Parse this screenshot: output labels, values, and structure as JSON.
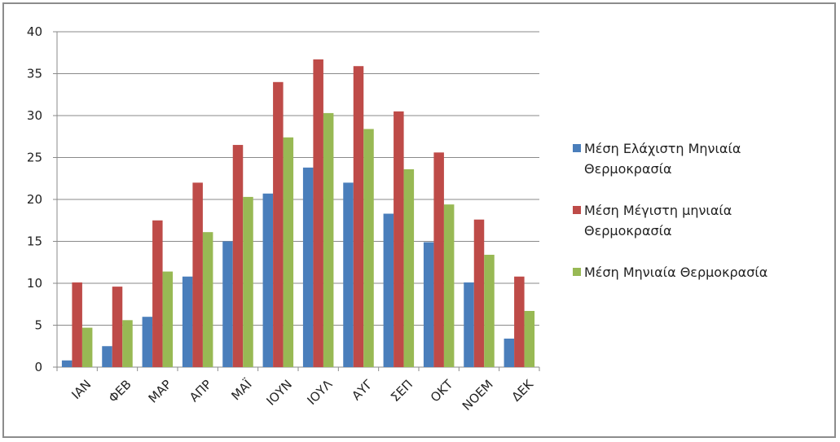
{
  "chart_data": {
    "type": "bar",
    "categories": [
      "ΙΑΝ",
      "ΦΕΒ",
      "ΜΑΡ",
      "ΑΠΡ",
      "ΜΑΪ",
      "ΙΟΥΝ",
      "ΙΟΥΛ",
      "ΑΥΓ",
      "ΣΕΠ",
      "ΟΚΤ",
      "ΝΟΕΜ",
      "ΔΕΚ"
    ],
    "series": [
      {
        "name": "Μέση Ελάχιστη Μηνιαία Θερμοκρασία",
        "legend_lines": [
          "Μέση Ελάχιστη Μηνιαία",
          "Θερμοκρασία"
        ],
        "color": "#4a7ebb",
        "values": [
          0.8,
          2.5,
          6.0,
          10.8,
          15.0,
          20.7,
          23.8,
          22.0,
          18.3,
          14.9,
          10.1,
          3.4
        ]
      },
      {
        "name": "Μέση Μέγιστη μηνιαία Θερμοκρασία",
        "legend_lines": [
          "Μέση Μέγιστη μηνιαία",
          "Θερμοκρασία"
        ],
        "color": "#be4b48",
        "values": [
          10.1,
          9.6,
          17.5,
          22.0,
          26.5,
          34.0,
          36.7,
          35.9,
          30.5,
          25.6,
          17.6,
          10.8
        ]
      },
      {
        "name": "Μέση Μηνιαία Θερμοκρασία",
        "legend_lines": [
          "Μέση Μηνιαία Θερμοκρασία"
        ],
        "color": "#98b954",
        "values": [
          4.7,
          5.6,
          11.4,
          16.1,
          20.3,
          27.4,
          30.3,
          28.4,
          23.6,
          19.4,
          13.4,
          6.7
        ]
      }
    ],
    "yticks": [
      "0",
      "5",
      "10",
      "15",
      "20",
      "25",
      "30",
      "35",
      "40"
    ],
    "ylim": [
      0,
      40
    ],
    "grid": true,
    "legend_position": "right"
  }
}
